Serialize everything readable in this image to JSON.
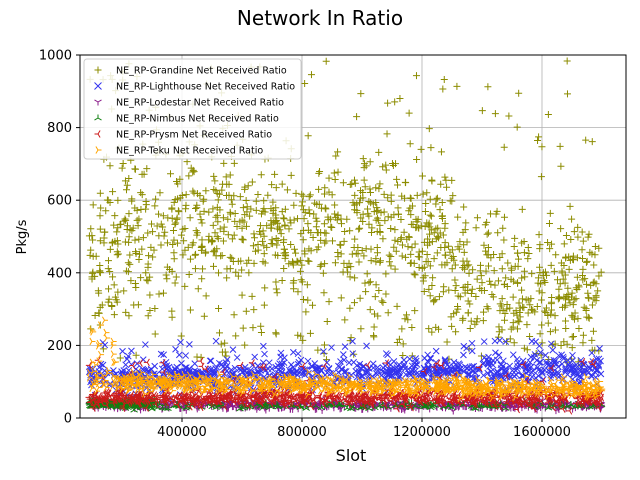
{
  "chart_data": {
    "type": "scatter",
    "title": "Network In Ratio",
    "xlabel": "Slot",
    "ylabel": "Pkg/s",
    "xlim": [
      60000,
      1880000
    ],
    "ylim": [
      0,
      1000
    ],
    "xticks": [
      400000,
      800000,
      1200000,
      1600000
    ],
    "xtick_labels": [
      "400000",
      "800000",
      "1200000",
      "1600000"
    ],
    "yticks": [
      0,
      200,
      400,
      600,
      800,
      1000
    ],
    "ytick_labels": [
      "0",
      "200",
      "400",
      "600",
      "800",
      "1000"
    ],
    "grid": true,
    "legend_position": "top-left",
    "x_range_data": [
      90000,
      1800000
    ],
    "series": [
      {
        "name": "NE_RP-Grandine Net Received Ratio",
        "color": "#8c8c00",
        "marker": "+",
        "typical_range": [
          150,
          700
        ],
        "peak": 1000
      },
      {
        "name": "NE_RP-Lighthouse Net Received Ratio",
        "color": "#3333ee",
        "marker": "x",
        "typical_range": [
          60,
          200
        ],
        "peak": 220
      },
      {
        "name": "NE_RP-Lodestar Net Received Ratio",
        "color": "#8a1a8a",
        "marker": "tri_down",
        "typical_range": [
          20,
          50
        ],
        "peak": 60
      },
      {
        "name": "NE_RP-Nimbus Net Received Ratio",
        "color": "#108010",
        "marker": "tri_up",
        "typical_range": [
          25,
          55
        ],
        "peak": 60
      },
      {
        "name": "NE_RP-Prysm Net Received Ratio",
        "color": "#cc1a1a",
        "marker": "tri_left",
        "typical_range": [
          30,
          120
        ],
        "peak": 160
      },
      {
        "name": "NE_RP-Teku Net Received Ratio",
        "color": "#ffa500",
        "marker": "tri_right",
        "typical_range": [
          60,
          140
        ],
        "peak": 290
      }
    ]
  }
}
